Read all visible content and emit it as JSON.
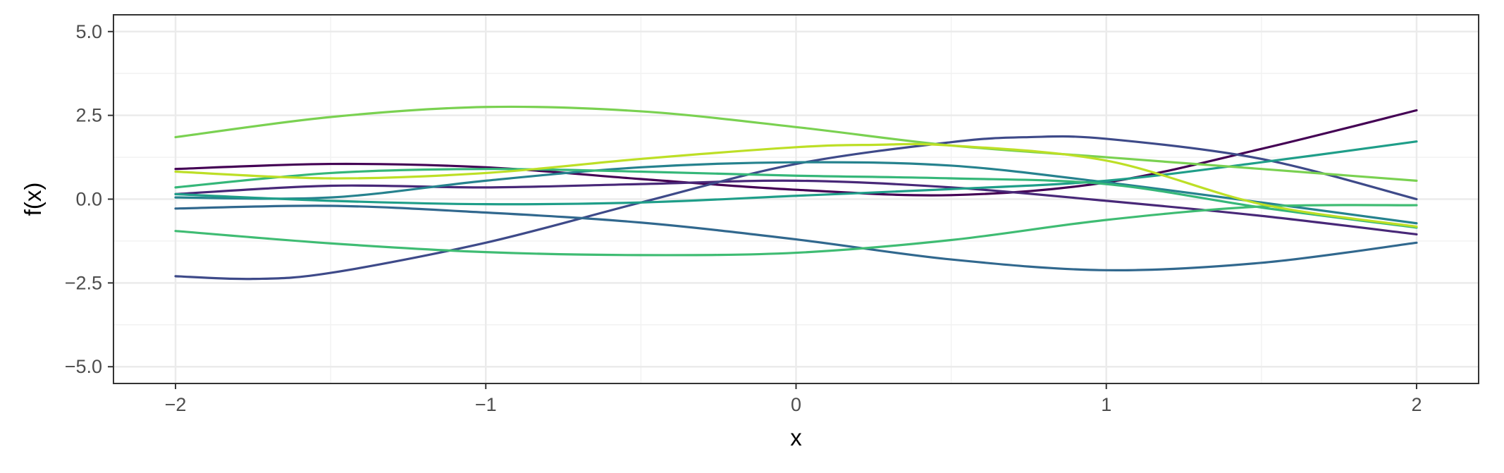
{
  "chart_data": {
    "type": "line",
    "title": "",
    "xlabel": "x",
    "ylabel": "f(x)",
    "xlim": [
      -2.2,
      2.2
    ],
    "ylim": [
      -5.5,
      5.5
    ],
    "x_ticks": [
      -2,
      -1,
      0,
      1,
      2
    ],
    "x_tick_labels": [
      "−2",
      "−1",
      "0",
      "1",
      "2"
    ],
    "y_ticks": [
      -5,
      -2.5,
      0,
      2.5,
      5
    ],
    "y_tick_labels": [
      "−5.0",
      "−2.5",
      "0.0",
      "2.5",
      "5.0"
    ],
    "grid": true,
    "legend": "none",
    "series": [
      {
        "color": "#440154",
        "x": [
          -2,
          -1.5,
          -1,
          -0.5,
          0,
          0.5,
          1,
          1.5,
          2
        ],
        "y": [
          0.9,
          1.05,
          0.95,
          0.6,
          0.28,
          0.12,
          0.5,
          1.5,
          2.65
        ]
      },
      {
        "color": "#482878",
        "x": [
          -2,
          -1.5,
          -1,
          -0.5,
          0,
          0.5,
          1,
          1.5,
          2
        ],
        "y": [
          0.15,
          0.4,
          0.35,
          0.45,
          0.55,
          0.35,
          -0.05,
          -0.5,
          -1.05
        ]
      },
      {
        "color": "#3e4a89",
        "x": [
          -2,
          -1.75,
          -1.5,
          -1,
          -0.5,
          0,
          0.5,
          0.75,
          1,
          1.5,
          2
        ],
        "y": [
          -2.3,
          -2.38,
          -2.2,
          -1.3,
          -0.1,
          1.05,
          1.7,
          1.85,
          1.8,
          1.2,
          0.0
        ]
      },
      {
        "color": "#31688e",
        "x": [
          -2,
          -1.5,
          -1,
          -0.5,
          0,
          0.5,
          1,
          1.5,
          2
        ],
        "y": [
          -0.28,
          -0.2,
          -0.4,
          -0.7,
          -1.2,
          -1.8,
          -2.12,
          -1.9,
          -1.3
        ]
      },
      {
        "color": "#26828e",
        "x": [
          -2,
          -1.5,
          -1,
          -0.5,
          0,
          0.5,
          1,
          1.5,
          2
        ],
        "y": [
          0.05,
          0.05,
          0.55,
          0.95,
          1.1,
          1.0,
          0.5,
          -0.1,
          -0.72
        ]
      },
      {
        "color": "#1f9e89",
        "x": [
          -2,
          -1.5,
          -1,
          -0.5,
          0,
          0.5,
          1,
          1.5,
          2
        ],
        "y": [
          0.15,
          -0.05,
          -0.15,
          -0.1,
          0.1,
          0.3,
          0.55,
          1.1,
          1.72
        ]
      },
      {
        "color": "#35b779",
        "x": [
          -2,
          -1.5,
          -1,
          -0.5,
          0,
          0.5,
          1,
          1.5,
          2
        ],
        "y": [
          0.35,
          0.78,
          0.9,
          0.82,
          0.7,
          0.62,
          0.45,
          -0.25,
          -0.85
        ]
      },
      {
        "color": "#3fbc73",
        "x": [
          -2,
          -1.5,
          -1,
          -0.5,
          0,
          0.5,
          1,
          1.5,
          2
        ],
        "y": [
          -0.95,
          -1.32,
          -1.58,
          -1.67,
          -1.6,
          -1.22,
          -0.62,
          -0.22,
          -0.18
        ]
      },
      {
        "color": "#7ad151",
        "x": [
          -2,
          -1.5,
          -1,
          -0.5,
          0,
          0.5,
          1,
          1.5,
          2
        ],
        "y": [
          1.85,
          2.45,
          2.75,
          2.62,
          2.15,
          1.6,
          1.25,
          0.9,
          0.55
        ]
      },
      {
        "color": "#bddf26",
        "x": [
          -2,
          -1.5,
          -1,
          -0.5,
          0,
          0.25,
          0.5,
          1,
          1.5,
          2
        ],
        "y": [
          0.82,
          0.62,
          0.78,
          1.2,
          1.55,
          1.62,
          1.6,
          1.15,
          -0.15,
          -0.82
        ]
      }
    ]
  }
}
